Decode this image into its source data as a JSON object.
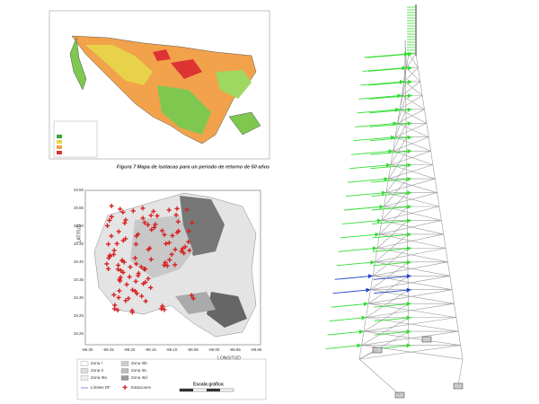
{
  "top_map": {
    "caption": "Figura 7  Mapa de isotacas para un periodo de retorno de 50 años"
  },
  "bottom_map": {
    "y_axis_label": "LATITUD",
    "x_axis_label": "LONGITUD",
    "yticks": [
      "19.60",
      "19.55",
      "19.50",
      "19.45",
      "19.40",
      "19.35",
      "19.30",
      "19.25",
      "19.20"
    ],
    "xticks": [
      "-99.30",
      "-99.25",
      "-99.20",
      "-99.15",
      "-99.10",
      "-99.05",
      "-99.00",
      "-98.95",
      "-98.90"
    ],
    "legend": [
      "Zona I",
      "Zona II",
      "Zona IIIa",
      "Zona IIIb",
      "Zona IIIc",
      "Zona IIId",
      "Límites DF",
      "Estaciones"
    ],
    "scale_label": "Escala gráfica"
  }
}
